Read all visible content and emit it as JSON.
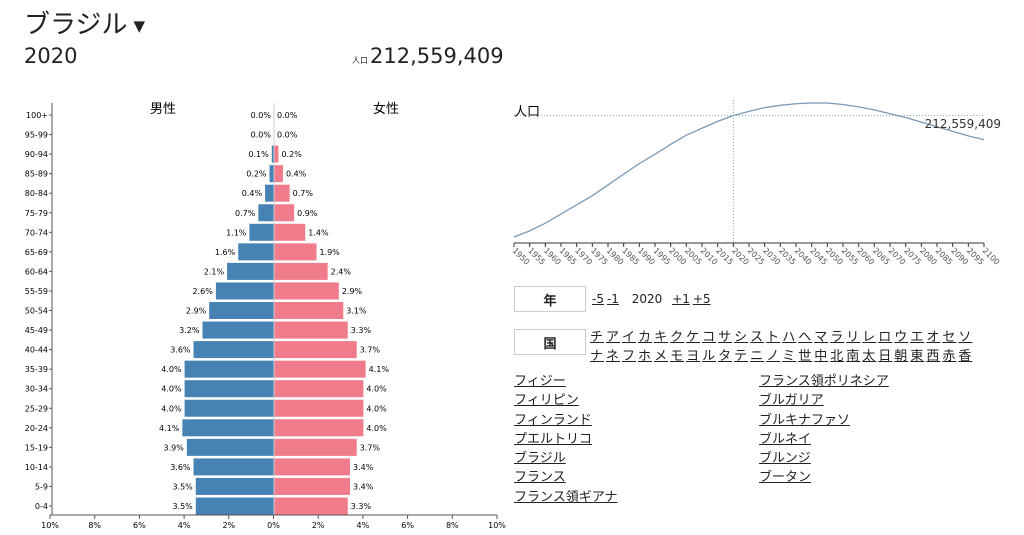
{
  "header": {
    "country": "ブラジル",
    "year": "2020",
    "pop_label": "人口",
    "population": "212,559,409"
  },
  "pyramid": {
    "male_label": "男性",
    "female_label": "女性",
    "ages": [
      "100+",
      "95-99",
      "90-94",
      "85-89",
      "80-84",
      "75-79",
      "70-74",
      "65-69",
      "60-64",
      "55-59",
      "50-54",
      "45-49",
      "40-44",
      "35-39",
      "30-34",
      "25-29",
      "20-24",
      "15-19",
      "10-14",
      "5-9",
      "0-4"
    ],
    "male": [
      0.0,
      0.0,
      0.1,
      0.2,
      0.4,
      0.7,
      1.1,
      1.6,
      2.1,
      2.6,
      2.9,
      3.2,
      3.6,
      4.0,
      4.0,
      4.0,
      4.1,
      3.9,
      3.6,
      3.5,
      3.5
    ],
    "female": [
      0.0,
      0.0,
      0.2,
      0.4,
      0.7,
      0.9,
      1.4,
      1.9,
      2.4,
      2.9,
      3.1,
      3.3,
      3.7,
      4.1,
      4.0,
      4.0,
      4.0,
      3.7,
      3.4,
      3.4,
      3.3
    ],
    "xticks": [
      "10%",
      "8%",
      "6%",
      "4%",
      "2%",
      "0%",
      "2%",
      "4%",
      "6%",
      "8%",
      "10%"
    ],
    "male_color": "#4682b4",
    "female_color": "#f07b8a"
  },
  "chart_data": {
    "type": "line",
    "title": "人口",
    "highlight_year": 2020,
    "highlight_label": "212,559,409",
    "x": [
      1950,
      1955,
      1960,
      1965,
      1970,
      1975,
      1980,
      1985,
      1990,
      1995,
      2000,
      2005,
      2010,
      2015,
      2020,
      2025,
      2030,
      2035,
      2040,
      2045,
      2050,
      2055,
      2060,
      2065,
      2070,
      2075,
      2080,
      2085,
      2090,
      2095,
      2100
    ],
    "values_millions": [
      54,
      62,
      72,
      84,
      96,
      108,
      122,
      136,
      150,
      162,
      175,
      187,
      196,
      205,
      212.6,
      218,
      223,
      226,
      228,
      229,
      229,
      227,
      224,
      220,
      215,
      210,
      204,
      198,
      192,
      186,
      181
    ]
  },
  "controls": {
    "year_label": "年",
    "minus5": "-5",
    "minus1": "-1",
    "year": "2020",
    "plus1": "+1",
    "plus5": "+5",
    "country_label": "国",
    "letters": [
      "チ",
      "ア",
      "イ",
      "カ",
      "キ",
      "ク",
      "ケ",
      "コ",
      "サ",
      "シ",
      "ス",
      "ト",
      "ハ",
      "ヘ",
      "マ",
      "ラ",
      "リ",
      "レ",
      "ロ",
      "ウ",
      "エ",
      "オ",
      "セ",
      "ソ",
      "ナ",
      "ネ",
      "フ",
      "ホ",
      "メ",
      "モ",
      "ヨ",
      "ル",
      "タ",
      "テ",
      "ニ",
      "ノ",
      "ミ",
      "世",
      "中",
      "北",
      "南",
      "太",
      "日",
      "朝",
      "東",
      "西",
      "赤",
      "香"
    ]
  },
  "countries_col1": [
    "フィジー",
    "フィリピン",
    "フィンランド",
    "プエルトリコ",
    "ブラジル",
    "フランス",
    "フランス領ギアナ"
  ],
  "countries_col2": [
    "フランス領ポリネシア",
    "ブルガリア",
    "ブルキナファソ",
    "ブルネイ",
    "ブルンジ",
    "ブータン"
  ]
}
